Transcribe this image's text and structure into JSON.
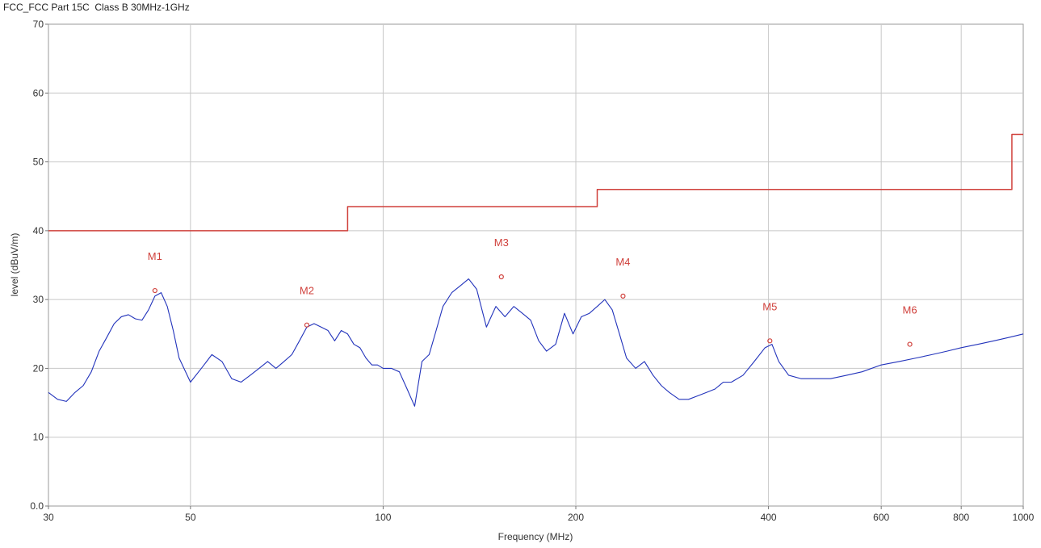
{
  "page": {
    "title": "FCC_FCC Part 15C  Class B 30MHz-1GHz"
  },
  "chart_data": {
    "type": "line",
    "title": "FCC_FCC Part 15C  Class B 30MHz-1GHz",
    "xlabel": "Frequency (MHz)",
    "ylabel": "level (dBuV/m)",
    "xscale": "log",
    "xlim": [
      30,
      1000
    ],
    "ylim": [
      0,
      70
    ],
    "grid": true,
    "x_ticks": [
      30,
      50,
      100,
      200,
      400,
      600,
      800,
      1000
    ],
    "x_tick_labels": [
      "30",
      "50",
      "100",
      "200",
      "400",
      "600",
      "800",
      "1000"
    ],
    "y_ticks": [
      0,
      10,
      20,
      30,
      40,
      50,
      60,
      70
    ],
    "y_tick_labels": [
      "0.0",
      "10",
      "20",
      "30",
      "40",
      "50",
      "60",
      "70"
    ],
    "colors": {
      "measurement": "#2233bb",
      "limit": "#d0413c",
      "marker": "#d0413c",
      "grid": "#c8c8c8"
    },
    "series": [
      {
        "role": "limit",
        "x": [
          30,
          88,
          88,
          216,
          216,
          960,
          960,
          1000
        ],
        "y": [
          40,
          40,
          43.5,
          43.5,
          46,
          46,
          54,
          54
        ]
      },
      {
        "role": "measurement",
        "x": [
          30,
          31,
          32,
          33,
          34,
          35,
          36,
          37,
          38,
          39,
          40,
          41,
          42,
          43,
          44,
          45,
          46,
          47,
          48,
          50,
          52,
          54,
          56,
          58,
          60,
          62,
          64,
          66,
          68,
          70,
          72,
          74,
          76,
          78,
          80,
          82,
          84,
          86,
          88,
          90,
          92,
          94,
          96,
          98,
          100,
          103,
          106,
          109,
          112,
          115,
          118,
          121,
          124,
          128,
          132,
          136,
          140,
          145,
          150,
          155,
          160,
          165,
          170,
          175,
          180,
          186,
          192,
          198,
          204,
          210,
          216,
          222,
          228,
          234,
          240,
          248,
          256,
          264,
          272,
          280,
          290,
          300,
          310,
          320,
          330,
          340,
          350,
          365,
          380,
          395,
          405,
          415,
          430,
          450,
          470,
          500,
          530,
          560,
          600,
          640,
          680,
          720,
          760,
          800,
          850,
          900,
          950,
          1000
        ],
        "y": [
          16.5,
          15.5,
          15.2,
          16.5,
          17.5,
          19.5,
          22.5,
          24.5,
          26.5,
          27.5,
          27.8,
          27.2,
          27.0,
          28.5,
          30.5,
          31.0,
          29.0,
          25.5,
          21.5,
          18.0,
          20.0,
          22.0,
          21.0,
          18.5,
          18.0,
          19.0,
          20.0,
          21.0,
          20.0,
          21.0,
          22.0,
          24.0,
          26.0,
          26.5,
          26.0,
          25.5,
          24.0,
          25.5,
          25.0,
          23.5,
          23.0,
          21.5,
          20.5,
          20.5,
          20.0,
          20.0,
          19.5,
          17.0,
          14.5,
          21.0,
          22.0,
          25.5,
          29.0,
          31.0,
          32.0,
          33.0,
          31.5,
          26.0,
          29.0,
          27.5,
          29.0,
          28.0,
          27.0,
          24.0,
          22.5,
          23.5,
          28.0,
          25.0,
          27.5,
          28.0,
          29.0,
          30.0,
          28.5,
          25.0,
          21.5,
          20.0,
          21.0,
          19.0,
          17.5,
          16.5,
          15.5,
          15.5,
          16.0,
          16.5,
          17.0,
          18.0,
          18.0,
          19.0,
          21.0,
          23.0,
          23.5,
          21.0,
          19.0,
          18.5,
          18.5,
          18.5,
          19.0,
          19.5,
          20.5,
          21.0,
          21.5,
          22.0,
          22.5,
          23.0,
          23.5,
          24.0,
          24.5,
          25.0
        ]
      }
    ],
    "markers": [
      {
        "label": "M1",
        "x": 44.0,
        "y": 31.3
      },
      {
        "label": "M2",
        "x": 76.0,
        "y": 26.3
      },
      {
        "label": "M3",
        "x": 153.0,
        "y": 33.3
      },
      {
        "label": "M4",
        "x": 237.0,
        "y": 30.5
      },
      {
        "label": "M5",
        "x": 402.0,
        "y": 24.0
      },
      {
        "label": "M6",
        "x": 665.0,
        "y": 23.5
      }
    ]
  }
}
